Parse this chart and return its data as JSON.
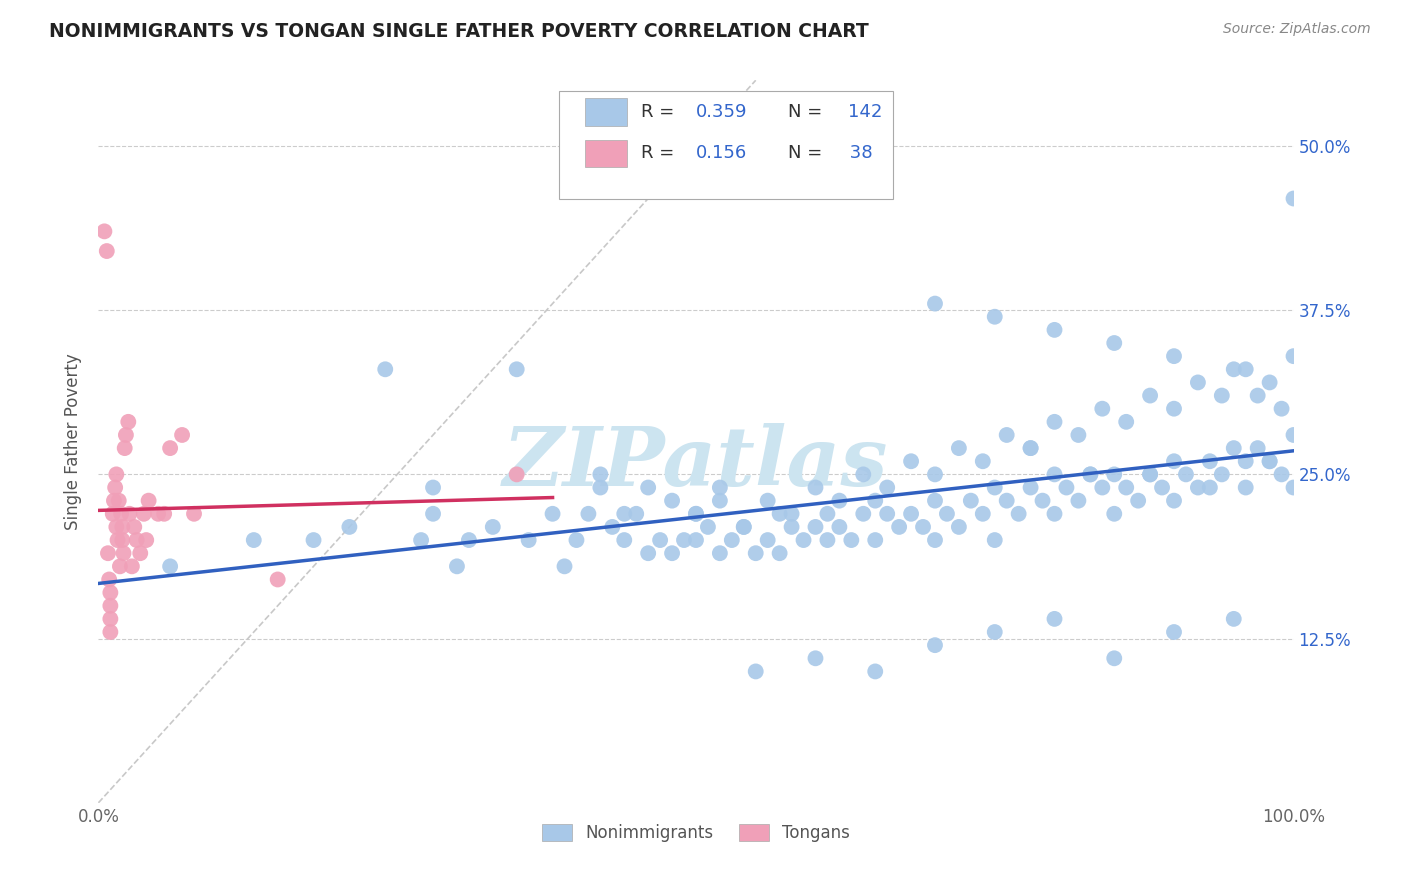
{
  "title": "NONIMMIGRANTS VS TONGAN SINGLE FATHER POVERTY CORRELATION CHART",
  "source": "Source: ZipAtlas.com",
  "ylabel": "Single Father Poverty",
  "xlim": [
    0.0,
    1.0
  ],
  "ylim": [
    0.0,
    0.55
  ],
  "yticks": [
    0.125,
    0.25,
    0.375,
    0.5
  ],
  "ytick_labels": [
    "12.5%",
    "25.0%",
    "37.5%",
    "50.0%"
  ],
  "nonimmigrant_color": "#a8c8e8",
  "tongan_color": "#f0a0b8",
  "regression_nonimmigrant_color": "#3060c0",
  "regression_tongan_color": "#d03060",
  "diagonal_color": "#c8c8c8",
  "watermark_color": "#cce4f0",
  "grid_color": "#cccccc",
  "background_color": "#ffffff",
  "legend_text_color": "#3366cc",
  "legend_label_color": "#333333",
  "nonimmigrant_x": [
    0.06,
    0.13,
    0.18,
    0.21,
    0.24,
    0.27,
    0.28,
    0.28,
    0.3,
    0.31,
    0.33,
    0.35,
    0.36,
    0.38,
    0.39,
    0.4,
    0.41,
    0.42,
    0.43,
    0.44,
    0.45,
    0.46,
    0.47,
    0.48,
    0.49,
    0.5,
    0.5,
    0.51,
    0.52,
    0.52,
    0.53,
    0.54,
    0.55,
    0.56,
    0.57,
    0.57,
    0.58,
    0.59,
    0.6,
    0.61,
    0.61,
    0.62,
    0.63,
    0.64,
    0.65,
    0.65,
    0.66,
    0.67,
    0.68,
    0.69,
    0.7,
    0.7,
    0.71,
    0.72,
    0.73,
    0.74,
    0.75,
    0.75,
    0.76,
    0.77,
    0.78,
    0.79,
    0.8,
    0.8,
    0.81,
    0.82,
    0.83,
    0.84,
    0.85,
    0.85,
    0.86,
    0.87,
    0.88,
    0.89,
    0.9,
    0.9,
    0.91,
    0.92,
    0.93,
    0.94,
    0.95,
    0.96,
    0.96,
    0.97,
    0.98,
    0.99,
    1.0,
    1.0,
    0.42,
    0.44,
    0.46,
    0.48,
    0.5,
    0.52,
    0.54,
    0.56,
    0.58,
    0.6,
    0.62,
    0.64,
    0.66,
    0.68,
    0.7,
    0.72,
    0.74,
    0.76,
    0.78,
    0.8,
    0.82,
    0.84,
    0.86,
    0.88,
    0.9,
    0.92,
    0.94,
    0.96,
    0.98,
    1.0,
    0.55,
    0.6,
    0.65,
    0.7,
    0.75,
    0.8,
    0.85,
    0.9,
    0.95,
    1.0,
    0.7,
    0.75,
    0.8,
    0.85,
    0.9,
    0.95,
    0.97,
    0.99,
    0.88,
    0.93,
    0.98,
    0.83,
    0.78
  ],
  "nonimmigrant_y": [
    0.18,
    0.2,
    0.2,
    0.21,
    0.33,
    0.2,
    0.22,
    0.24,
    0.18,
    0.2,
    0.21,
    0.33,
    0.2,
    0.22,
    0.18,
    0.2,
    0.22,
    0.24,
    0.21,
    0.2,
    0.22,
    0.19,
    0.2,
    0.19,
    0.2,
    0.22,
    0.2,
    0.21,
    0.23,
    0.19,
    0.2,
    0.21,
    0.19,
    0.2,
    0.19,
    0.22,
    0.21,
    0.2,
    0.21,
    0.2,
    0.22,
    0.21,
    0.2,
    0.22,
    0.2,
    0.23,
    0.22,
    0.21,
    0.22,
    0.21,
    0.23,
    0.2,
    0.22,
    0.21,
    0.23,
    0.22,
    0.24,
    0.2,
    0.23,
    0.22,
    0.24,
    0.23,
    0.22,
    0.25,
    0.24,
    0.23,
    0.25,
    0.24,
    0.25,
    0.22,
    0.24,
    0.23,
    0.25,
    0.24,
    0.26,
    0.23,
    0.25,
    0.24,
    0.26,
    0.25,
    0.27,
    0.26,
    0.24,
    0.27,
    0.26,
    0.25,
    0.28,
    0.24,
    0.25,
    0.22,
    0.24,
    0.23,
    0.22,
    0.24,
    0.21,
    0.23,
    0.22,
    0.24,
    0.23,
    0.25,
    0.24,
    0.26,
    0.25,
    0.27,
    0.26,
    0.28,
    0.27,
    0.29,
    0.28,
    0.3,
    0.29,
    0.31,
    0.3,
    0.32,
    0.31,
    0.33,
    0.32,
    0.34,
    0.1,
    0.11,
    0.1,
    0.12,
    0.13,
    0.14,
    0.11,
    0.13,
    0.14,
    0.46,
    0.38,
    0.37,
    0.36,
    0.35,
    0.34,
    0.33,
    0.31,
    0.3,
    0.25,
    0.24,
    0.26,
    0.25,
    0.27
  ],
  "tongan_x": [
    0.005,
    0.007,
    0.008,
    0.009,
    0.01,
    0.01,
    0.01,
    0.01,
    0.012,
    0.013,
    0.014,
    0.015,
    0.015,
    0.016,
    0.017,
    0.018,
    0.019,
    0.02,
    0.02,
    0.021,
    0.022,
    0.023,
    0.025,
    0.026,
    0.028,
    0.03,
    0.032,
    0.035,
    0.038,
    0.04,
    0.042,
    0.05,
    0.055,
    0.06,
    0.07,
    0.08,
    0.15,
    0.35
  ],
  "tongan_y": [
    0.435,
    0.42,
    0.19,
    0.17,
    0.16,
    0.15,
    0.14,
    0.13,
    0.22,
    0.23,
    0.24,
    0.21,
    0.25,
    0.2,
    0.23,
    0.18,
    0.22,
    0.2,
    0.21,
    0.19,
    0.27,
    0.28,
    0.29,
    0.22,
    0.18,
    0.21,
    0.2,
    0.19,
    0.22,
    0.2,
    0.23,
    0.22,
    0.22,
    0.27,
    0.28,
    0.22,
    0.17,
    0.25
  ]
}
